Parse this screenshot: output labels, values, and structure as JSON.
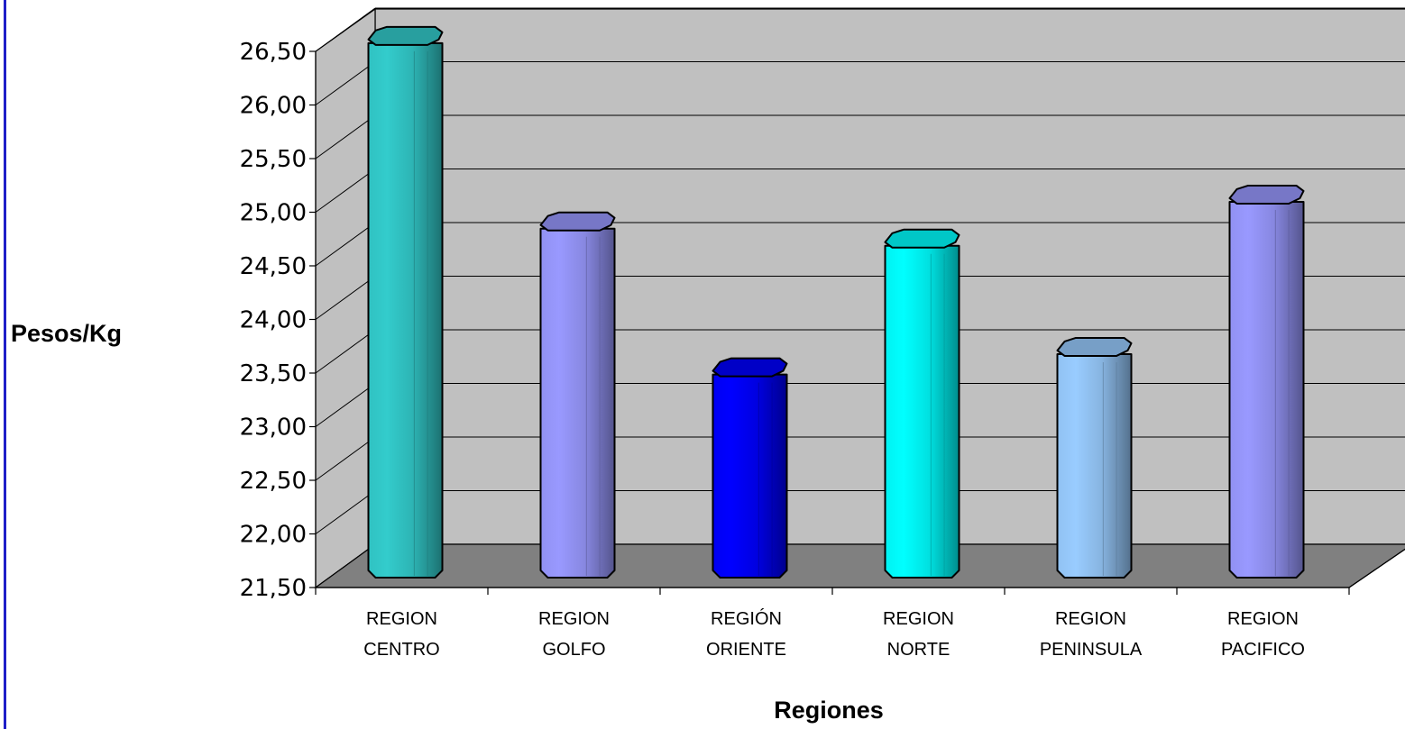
{
  "chart_data": {
    "type": "bar",
    "style": "3d-cylinder",
    "categories": [
      [
        "REGION",
        "CENTRO"
      ],
      [
        "REGION",
        "GOLFO"
      ],
      [
        "REGIÓN",
        "ORIENTE"
      ],
      [
        "REGION",
        "NORTE"
      ],
      [
        "REGION",
        "PENINSULA"
      ],
      [
        "REGION",
        "PACIFICO"
      ]
    ],
    "values": [
      26.56,
      24.83,
      23.47,
      24.67,
      23.66,
      25.08
    ],
    "colors": [
      "#33cccc",
      "#9999ff",
      "#0000ff",
      "#00ffff",
      "#99ccff",
      "#9999ff"
    ],
    "ylabel": "Pesos/Kg",
    "xlabel": "Regiones",
    "ylim": [
      21.5,
      26.5
    ],
    "ytick_values": [
      21.5,
      22,
      22.5,
      23,
      23.5,
      24,
      24.5,
      25,
      25.5,
      26,
      26.5
    ],
    "ytick_labels": [
      "21,50",
      "22,00",
      "22,50",
      "23,00",
      "23,50",
      "24,00",
      "24,50",
      "25,00",
      "25,50",
      "26,00",
      "26,50"
    ],
    "grid": true,
    "wall_color": "#c0c0c0",
    "floor_color": "#808080"
  }
}
